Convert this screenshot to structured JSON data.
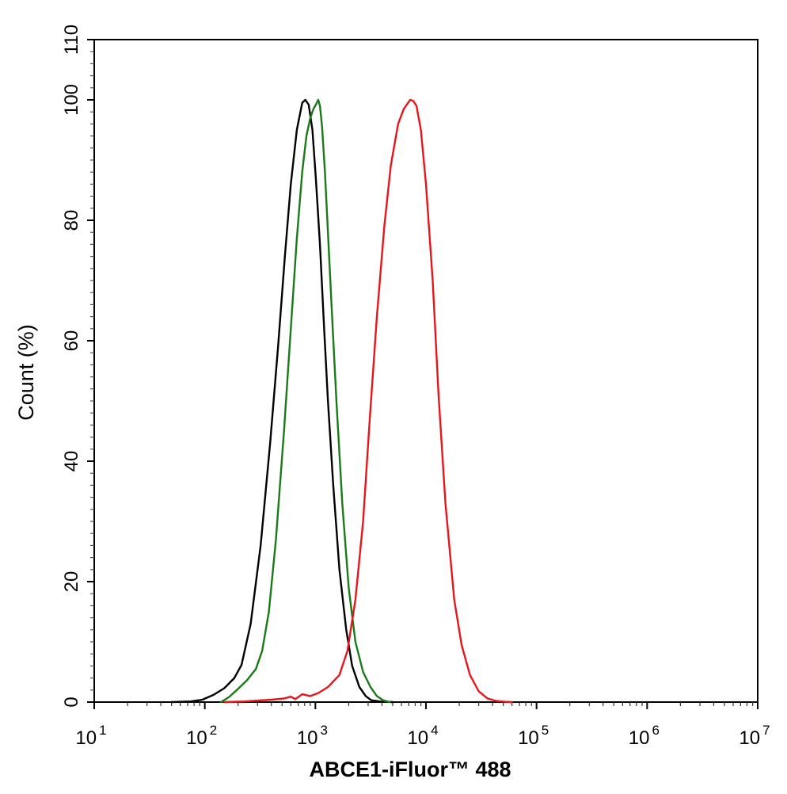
{
  "chart_data": {
    "type": "line",
    "xlabel": "ABCE1-iFluor™ 488",
    "ylabel": "Count  (%)",
    "xscale": "log",
    "xlim": [
      10,
      10000000
    ],
    "ylim": [
      0,
      110
    ],
    "x_ticks": [
      {
        "value": 10,
        "base": "10",
        "exp": "1"
      },
      {
        "value": 100,
        "base": "10",
        "exp": "2"
      },
      {
        "value": 1000,
        "base": "10",
        "exp": "3"
      },
      {
        "value": 10000,
        "base": "10",
        "exp": "4"
      },
      {
        "value": 100000,
        "base": "10",
        "exp": "5"
      },
      {
        "value": 1000000,
        "base": "10",
        "exp": "6"
      },
      {
        "value": 10000000,
        "base": "10",
        "exp": "7"
      }
    ],
    "y_ticks": [
      0,
      20,
      40,
      60,
      80,
      100,
      110
    ],
    "y_tick_labels": [
      "0",
      "20",
      "40",
      "60",
      "80",
      "100",
      "110"
    ],
    "grid": false,
    "series": [
      {
        "color": "#000000",
        "x": [
          50,
          75,
          95,
          120,
          150,
          185,
          215,
          260,
          320,
          390,
          460,
          530,
          600,
          680,
          760,
          810,
          870,
          940,
          1010,
          1100,
          1200,
          1300,
          1450,
          1650,
          1900,
          2150,
          2500,
          2850,
          3200,
          3800,
          5000
        ],
        "y": [
          0,
          0.1,
          0.4,
          1.2,
          2.3,
          4.0,
          6.2,
          13.0,
          26.0,
          43.0,
          59.0,
          74.0,
          86.0,
          95.0,
          99.5,
          100,
          99.2,
          95.0,
          87.0,
          76.0,
          62.0,
          50.0,
          36.0,
          22.0,
          12.0,
          6.0,
          2.5,
          1.0,
          0.3,
          0.1,
          0
        ]
      },
      {
        "color": "#1a7a1a",
        "x": [
          140,
          165,
          200,
          240,
          290,
          330,
          380,
          440,
          520,
          600,
          680,
          760,
          830,
          900,
          960,
          1010,
          1060,
          1100,
          1150,
          1220,
          1300,
          1400,
          1550,
          1750,
          2000,
          2300,
          2700,
          3150,
          3600,
          4100,
          4700
        ],
        "y": [
          0,
          0.8,
          2.2,
          3.6,
          5.5,
          8.5,
          15.0,
          27.0,
          45.0,
          62.0,
          77.0,
          88.0,
          94.0,
          97.0,
          98.5,
          99.2,
          100,
          99.0,
          95.5,
          88.0,
          78.0,
          66.0,
          50.0,
          33.0,
          19.0,
          10.0,
          5.0,
          2.5,
          1.0,
          0.3,
          0
        ]
      },
      {
        "color": "#e8161b",
        "x": [
          150,
          230,
          330,
          400,
          520,
          600,
          660,
          760,
          900,
          1060,
          1300,
          1650,
          1950,
          2300,
          2700,
          3100,
          3600,
          4200,
          4800,
          5600,
          6300,
          7200,
          7700,
          8200,
          9000,
          10000,
          11500,
          13000,
          15000,
          18000,
          21000,
          25000,
          30000,
          36000,
          43000,
          52000,
          60000
        ],
        "y": [
          0,
          0.1,
          0.3,
          0.4,
          0.6,
          0.9,
          0.5,
          1.3,
          1.0,
          1.5,
          2.5,
          4.5,
          8.5,
          17.0,
          30.0,
          47.0,
          64.0,
          79.0,
          89.0,
          96.0,
          98.5,
          100,
          99.8,
          99.0,
          95.0,
          86.0,
          70.0,
          51.0,
          33.0,
          17.0,
          9.5,
          4.5,
          1.8,
          0.6,
          0.2,
          0.05,
          0
        ]
      }
    ]
  }
}
